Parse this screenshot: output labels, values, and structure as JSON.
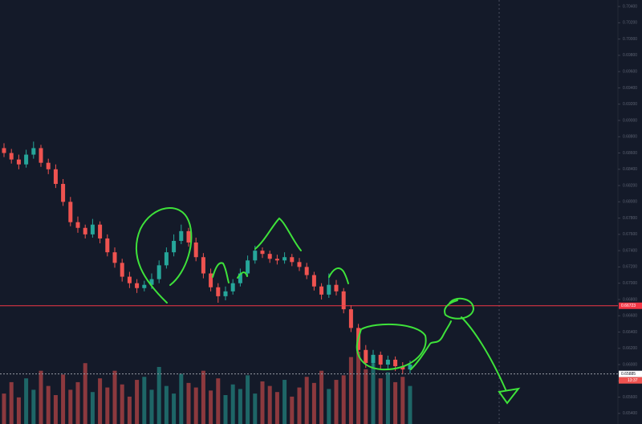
{
  "chart_data": {
    "type": "candlestick",
    "open": [
      0.6866,
      0.686,
      0.6852,
      0.6846,
      0.6858,
      0.6866,
      0.6848,
      0.684,
      0.6822,
      0.68,
      0.6775,
      0.6768,
      0.676,
      0.6772,
      0.6755,
      0.6738,
      0.6725,
      0.6708,
      0.67,
      0.6694,
      0.6698,
      0.6705,
      0.6722,
      0.6738,
      0.6752,
      0.6764,
      0.675,
      0.6732,
      0.6712,
      0.6695,
      0.6684,
      0.669,
      0.67,
      0.6712,
      0.6728,
      0.674,
      0.6736,
      0.673,
      0.6728,
      0.6732,
      0.6726,
      0.672,
      0.671,
      0.6696,
      0.6686,
      0.6698,
      0.669,
      0.6668,
      0.6645,
      0.6618,
      0.6602,
      0.6612,
      0.66,
      0.6606,
      0.6598,
      0.6594
    ],
    "high": [
      0.6872,
      0.6865,
      0.6858,
      0.6864,
      0.6874,
      0.687,
      0.6853,
      0.6846,
      0.6828,
      0.6806,
      0.6782,
      0.6772,
      0.6779,
      0.6776,
      0.676,
      0.6744,
      0.673,
      0.6714,
      0.6705,
      0.6703,
      0.6712,
      0.6728,
      0.6744,
      0.676,
      0.6772,
      0.6768,
      0.6756,
      0.6737,
      0.6718,
      0.67,
      0.6696,
      0.6705,
      0.6718,
      0.6734,
      0.6746,
      0.6744,
      0.674,
      0.6735,
      0.6738,
      0.6736,
      0.6731,
      0.6725,
      0.6714,
      0.67,
      0.6712,
      0.6704,
      0.6694,
      0.6673,
      0.665,
      0.6624,
      0.6618,
      0.6616,
      0.6611,
      0.661,
      0.6603,
      0.6605
    ],
    "low": [
      0.6855,
      0.6847,
      0.684,
      0.6842,
      0.6853,
      0.6843,
      0.6834,
      0.6817,
      0.6795,
      0.677,
      0.6762,
      0.6755,
      0.6756,
      0.6749,
      0.6733,
      0.6719,
      0.6702,
      0.6694,
      0.6688,
      0.669,
      0.6693,
      0.67,
      0.6718,
      0.6733,
      0.6748,
      0.6745,
      0.6727,
      0.6706,
      0.669,
      0.6676,
      0.6679,
      0.6686,
      0.6696,
      0.6708,
      0.6724,
      0.6731,
      0.6725,
      0.6723,
      0.6724,
      0.6721,
      0.6715,
      0.6705,
      0.6691,
      0.668,
      0.6682,
      0.6685,
      0.6663,
      0.664,
      0.6612,
      0.6596,
      0.6597,
      0.6594,
      0.6595,
      0.6592,
      0.6588,
      0.6589
    ],
    "close": [
      0.686,
      0.6852,
      0.6846,
      0.6858,
      0.6866,
      0.6848,
      0.684,
      0.6822,
      0.68,
      0.6775,
      0.6768,
      0.676,
      0.6772,
      0.6755,
      0.6738,
      0.6725,
      0.6708,
      0.67,
      0.6694,
      0.6698,
      0.6705,
      0.6722,
      0.6738,
      0.6752,
      0.6764,
      0.675,
      0.6732,
      0.6712,
      0.6695,
      0.6684,
      0.669,
      0.67,
      0.6712,
      0.6728,
      0.674,
      0.6736,
      0.673,
      0.6728,
      0.6732,
      0.6726,
      0.672,
      0.671,
      0.6696,
      0.6686,
      0.6698,
      0.669,
      0.6668,
      0.6645,
      0.6618,
      0.6602,
      0.6612,
      0.66,
      0.6606,
      0.6598,
      0.6594,
      0.66
    ],
    "volume": [
      40,
      55,
      35,
      60,
      45,
      70,
      50,
      38,
      65,
      45,
      55,
      80,
      42,
      60,
      48,
      70,
      52,
      36,
      58,
      62,
      45,
      75,
      50,
      40,
      66,
      54,
      48,
      70,
      44,
      60,
      38,
      52,
      46,
      64,
      40,
      56,
      50,
      42,
      58,
      36,
      48,
      62,
      54,
      70,
      46,
      58,
      64,
      88,
      95,
      72,
      80,
      60,
      68,
      55,
      62,
      50
    ],
    "up_color": "#26a69a",
    "down_color": "#ef5350",
    "ylim": [
      0.6527,
      0.7048
    ],
    "yticks": [
      {
        "value": 0.654,
        "label": "0.65400"
      },
      {
        "value": 0.656,
        "label": "0.65600"
      },
      {
        "value": 0.658,
        "label": "0.65800"
      },
      {
        "value": 0.66,
        "label": "0.66000"
      },
      {
        "value": 0.662,
        "label": "0.66200"
      },
      {
        "value": 0.664,
        "label": "0.66400"
      },
      {
        "value": 0.666,
        "label": "0.66600"
      },
      {
        "value": 0.668,
        "label": "0.66800"
      },
      {
        "value": 0.67,
        "label": "0.67000"
      },
      {
        "value": 0.672,
        "label": "0.67200"
      },
      {
        "value": 0.674,
        "label": "0.67400"
      },
      {
        "value": 0.676,
        "label": "0.67600"
      },
      {
        "value": 0.678,
        "label": "0.67800"
      },
      {
        "value": 0.68,
        "label": "0.68000"
      },
      {
        "value": 0.682,
        "label": "0.68200"
      },
      {
        "value": 0.684,
        "label": "0.68400"
      },
      {
        "value": 0.686,
        "label": "0.68600"
      },
      {
        "value": 0.688,
        "label": "0.68800"
      },
      {
        "value": 0.69,
        "label": "0.69000"
      },
      {
        "value": 0.692,
        "label": "0.69200"
      },
      {
        "value": 0.694,
        "label": "0.69400"
      },
      {
        "value": 0.696,
        "label": "0.69600"
      },
      {
        "value": 0.698,
        "label": "0.69800"
      },
      {
        "value": 0.7,
        "label": "0.70000"
      },
      {
        "value": 0.702,
        "label": "0.70200"
      },
      {
        "value": 0.704,
        "label": "0.70400"
      }
    ],
    "lines": [
      {
        "value": 0.66723,
        "color": "#f23645",
        "style": "solid"
      },
      {
        "value": 0.65885,
        "color": "#9598a1",
        "style": "dashed"
      }
    ],
    "time_label": "13:37"
  }
}
